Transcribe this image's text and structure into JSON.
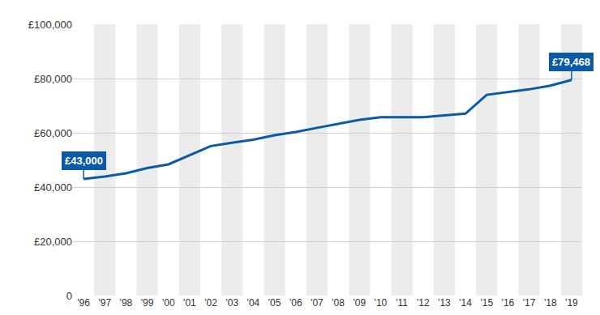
{
  "chart_data": {
    "type": "line",
    "categories": [
      "'96",
      "'97",
      "'98",
      "'99",
      "'00",
      "'01",
      "'02",
      "'03",
      "'04",
      "'05",
      "'06",
      "'07",
      "'08",
      "'09",
      "'10",
      "'11",
      "'12",
      "'13",
      "'14",
      "'15",
      "'16",
      "'17",
      "'18",
      "'19"
    ],
    "values": [
      43000,
      43860,
      45066,
      47008,
      48371,
      51822,
      55118,
      56358,
      57485,
      59095,
      60277,
      61820,
      63291,
      64766,
      65738,
      65738,
      65738,
      66396,
      67060,
      74000,
      74962,
      76011,
      77379,
      79468
    ],
    "color": "#0b5aa8",
    "ylim": [
      0,
      100000
    ],
    "yticks": [
      0,
      {
        "value": 20000,
        "label": "£20,000"
      },
      {
        "value": 40000,
        "label": "£40,000"
      },
      {
        "value": 60000,
        "label": "£60,000"
      },
      {
        "value": 80000,
        "label": "£80,000"
      },
      {
        "value": 100000,
        "label": "£100,000"
      }
    ],
    "grid": true,
    "annotations": [
      {
        "x": "'96",
        "y": 43000,
        "text": "£43,000"
      },
      {
        "x": "'19",
        "y": 79468,
        "text": "£79,468"
      }
    ]
  }
}
